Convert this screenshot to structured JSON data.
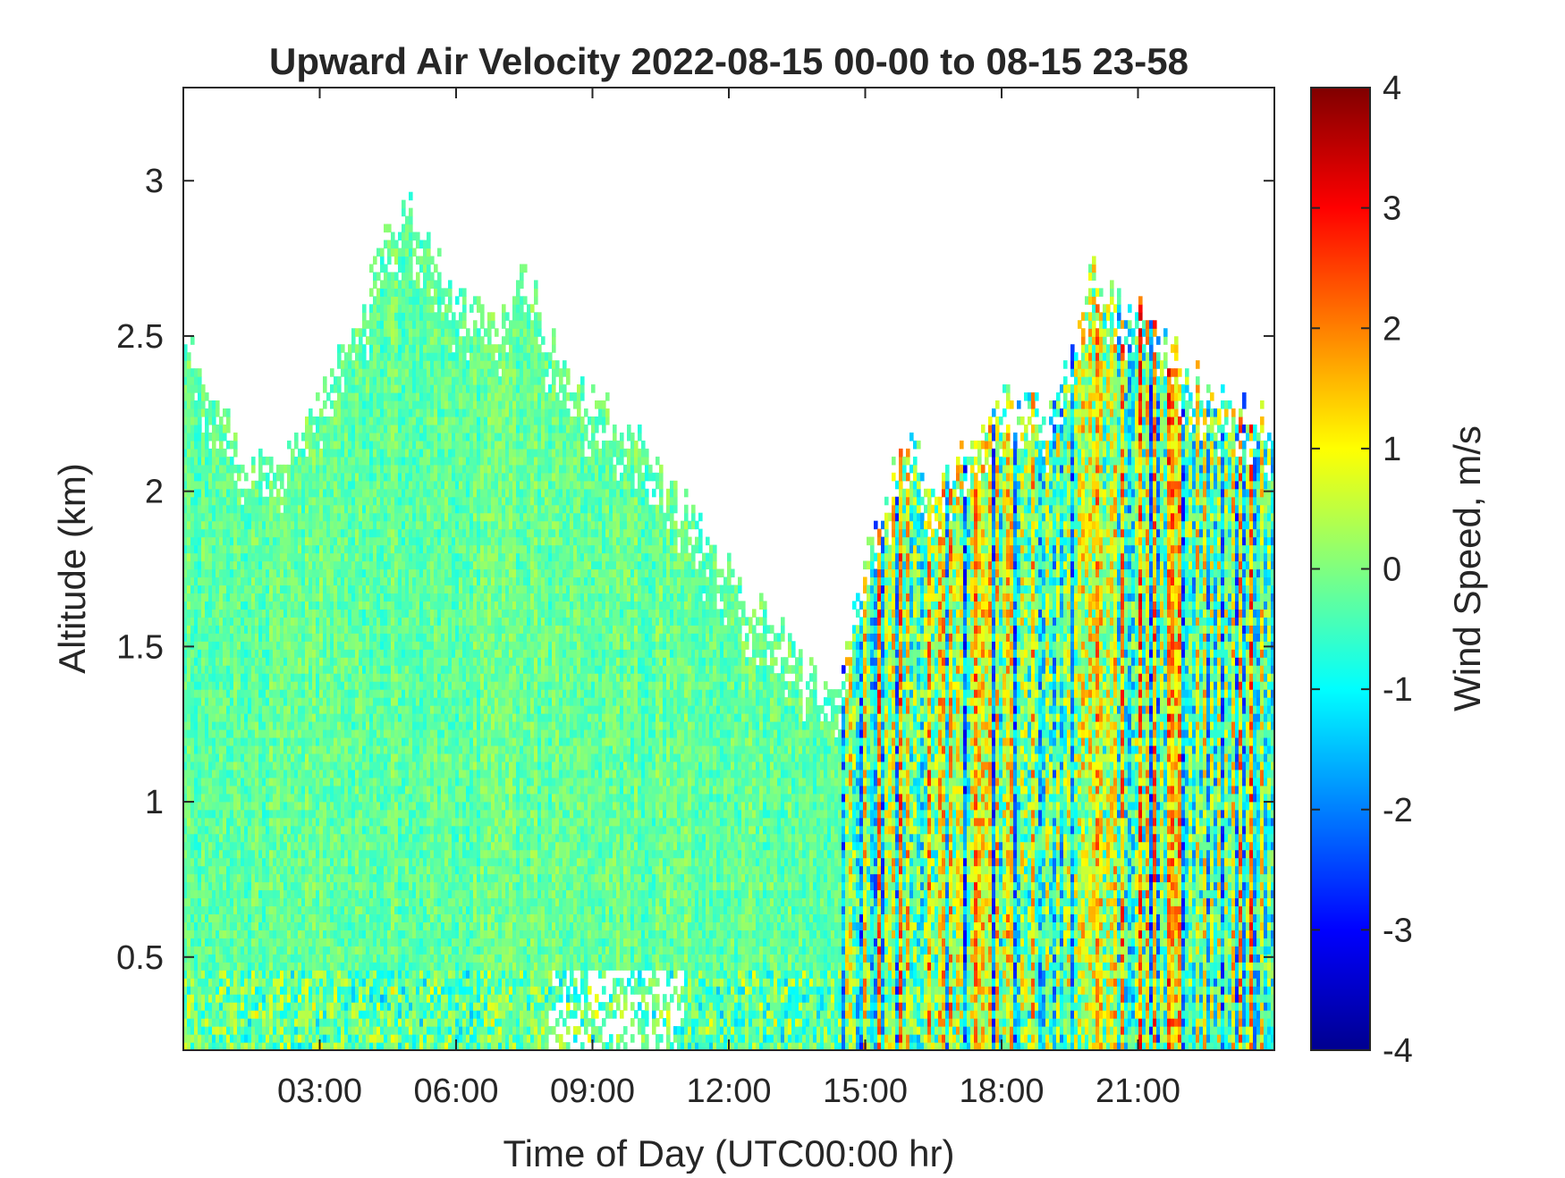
{
  "chart_data": {
    "type": "heatmap",
    "title": "Upward Air Velocity 2022-08-15 00-00 to 08-15 23-58",
    "xlabel": "Time of Day (UTC00:00 hr)",
    "ylabel": "Altitude (km)",
    "xlim": [
      0,
      24
    ],
    "ylim": [
      0.2,
      3.3
    ],
    "x_ticks": [
      3,
      6,
      9,
      12,
      15,
      18,
      21
    ],
    "x_tick_labels": [
      "03:00",
      "06:00",
      "09:00",
      "12:00",
      "15:00",
      "18:00",
      "21:00"
    ],
    "y_ticks": [
      0.5,
      1,
      1.5,
      2,
      2.5,
      3
    ],
    "y_tick_labels": [
      "0.5",
      "1",
      "1.5",
      "2",
      "2.5",
      "3"
    ],
    "colorbar": {
      "label": "Wind Speed, m/s",
      "range": [
        -4,
        4
      ],
      "ticks": [
        4,
        3,
        2,
        1,
        0,
        -1,
        -2,
        -3,
        -4
      ],
      "tick_labels": [
        "4",
        "3",
        "2",
        "1",
        "0",
        "-1",
        "-2",
        "-3",
        "-4"
      ],
      "colormap": "jet"
    },
    "data_top_km": {
      "hours": [
        0,
        1,
        2,
        3,
        4,
        4.5,
        5,
        5.5,
        6,
        7,
        7.5,
        8,
        9,
        10,
        11,
        12,
        12.5,
        13,
        13.5,
        14,
        14.5,
        15,
        16,
        16.5,
        17,
        18,
        19,
        19.5,
        20,
        21,
        22,
        23,
        24
      ],
      "top": [
        2.5,
        2.2,
        2.05,
        2.3,
        2.6,
        2.85,
        2.9,
        2.8,
        2.6,
        2.55,
        2.75,
        2.5,
        2.3,
        2.15,
        1.95,
        1.75,
        1.65,
        1.6,
        1.45,
        1.4,
        1.38,
        1.8,
        2.2,
        2.0,
        2.1,
        2.3,
        2.25,
        2.4,
        2.7,
        2.6,
        2.4,
        2.3,
        2.2
      ]
    },
    "velocity_regime": [
      {
        "hours": [
          0,
          14.5
        ],
        "typical_wind_speed_ms": [
          -0.8,
          0.8
        ]
      },
      {
        "hours": [
          14.5,
          24
        ],
        "typical_wind_speed_ms": [
          -4,
          4
        ]
      }
    ],
    "grid": false,
    "legend": "none"
  }
}
